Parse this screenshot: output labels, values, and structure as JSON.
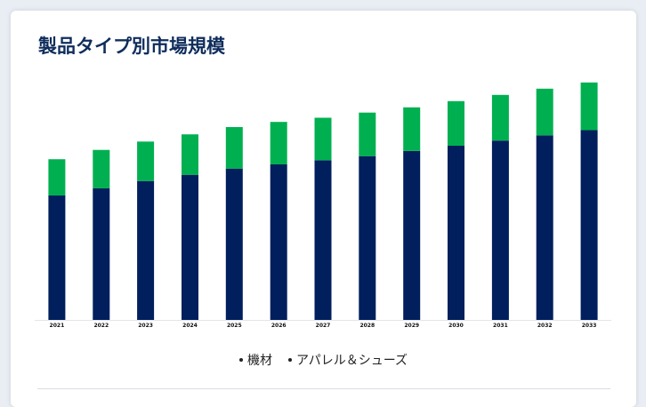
{
  "card": {
    "title": "製品タイプ別市場規模"
  },
  "chart_data": {
    "type": "bar",
    "stacked": true,
    "categories": [
      "2021",
      "2022",
      "2023",
      "2024",
      "2025",
      "2026",
      "2027",
      "2028",
      "2029",
      "2030",
      "2031",
      "2032",
      "2033"
    ],
    "series": [
      {
        "name": "機材",
        "color": "#001f5c",
        "values": [
          120,
          127,
          134,
          140,
          146,
          150,
          154,
          158,
          163,
          168,
          173,
          178,
          183
        ]
      },
      {
        "name": "アパレル＆シューズ",
        "color": "#00b050",
        "values": [
          35,
          37,
          38,
          39,
          40,
          41,
          41,
          42,
          42,
          43,
          44,
          45,
          46
        ]
      }
    ],
    "ylim": [
      0,
      240
    ],
    "grid": false,
    "legend_position": "bottom"
  }
}
